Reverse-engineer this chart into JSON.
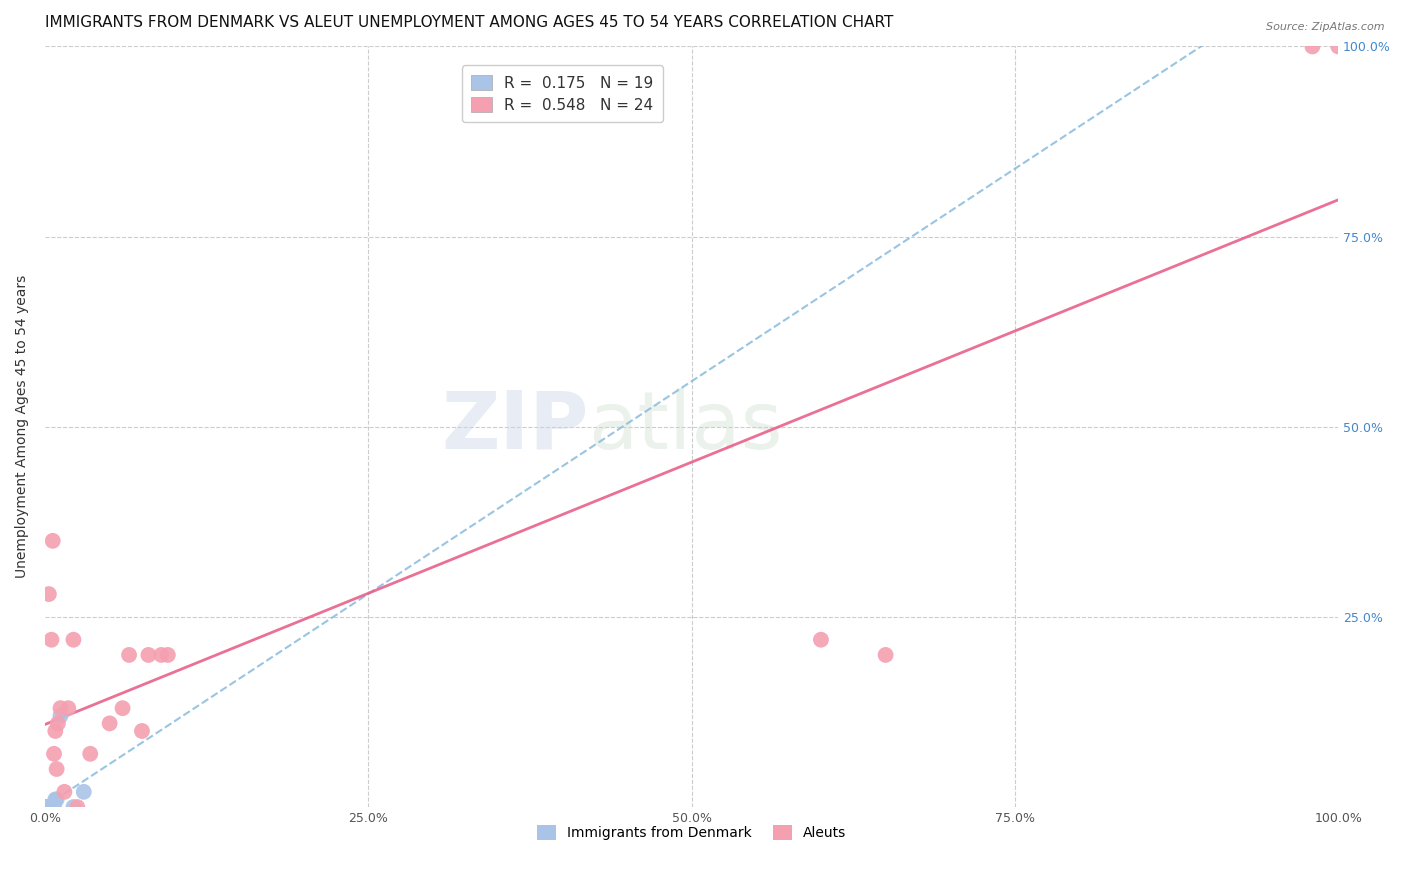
{
  "title": "IMMIGRANTS FROM DENMARK VS ALEUT UNEMPLOYMENT AMONG AGES 45 TO 54 YEARS CORRELATION CHART",
  "source": "Source: ZipAtlas.com",
  "ylabel": "Unemployment Among Ages 45 to 54 years",
  "watermark_zip": "ZIP",
  "watermark_atlas": "atlas",
  "denmark_x": [
    0.001,
    0.001,
    0.002,
    0.002,
    0.002,
    0.003,
    0.003,
    0.003,
    0.004,
    0.004,
    0.005,
    0.005,
    0.006,
    0.007,
    0.008,
    0.009,
    0.012,
    0.022,
    0.03
  ],
  "denmark_y": [
    0.0,
    0.0,
    0.0,
    0.0,
    0.0,
    0.0,
    0.0,
    0.0,
    0.0,
    0.0,
    0.0,
    0.0,
    0.0,
    0.0,
    0.01,
    0.01,
    0.12,
    0.0,
    0.02
  ],
  "aleut_x": [
    0.003,
    0.005,
    0.006,
    0.007,
    0.008,
    0.009,
    0.01,
    0.012,
    0.015,
    0.018,
    0.022,
    0.025,
    0.035,
    0.05,
    0.06,
    0.065,
    0.075,
    0.08,
    0.09,
    0.095,
    0.6,
    0.65,
    0.98,
    1.0
  ],
  "aleut_y": [
    0.28,
    0.22,
    0.35,
    0.07,
    0.1,
    0.05,
    0.11,
    0.13,
    0.02,
    0.13,
    0.22,
    0.0,
    0.07,
    0.11,
    0.13,
    0.2,
    0.1,
    0.2,
    0.2,
    0.2,
    0.22,
    0.2,
    1.0,
    1.0
  ],
  "denmark_color": "#aac4e8",
  "aleut_color": "#f4a0b0",
  "denmark_line_color": "#88bbdd",
  "aleut_line_color": "#e8608a",
  "denmark_R": 0.175,
  "denmark_N": 19,
  "aleut_R": 0.548,
  "aleut_N": 24,
  "xlim": [
    0,
    1.0
  ],
  "ylim": [
    0,
    1.0
  ],
  "xtick_vals": [
    0,
    0.25,
    0.5,
    0.75,
    1.0
  ],
  "xtick_labels": [
    "0.0%",
    "25.0%",
    "50.0%",
    "75.0%",
    "100.0%"
  ],
  "ytick_vals": [
    0.25,
    0.5,
    0.75,
    1.0
  ],
  "ytick_labels": [
    "25.0%",
    "50.0%",
    "75.0%",
    "100.0%"
  ],
  "title_fontsize": 11,
  "axis_label_fontsize": 10,
  "tick_fontsize": 9,
  "legend_fontsize": 11
}
